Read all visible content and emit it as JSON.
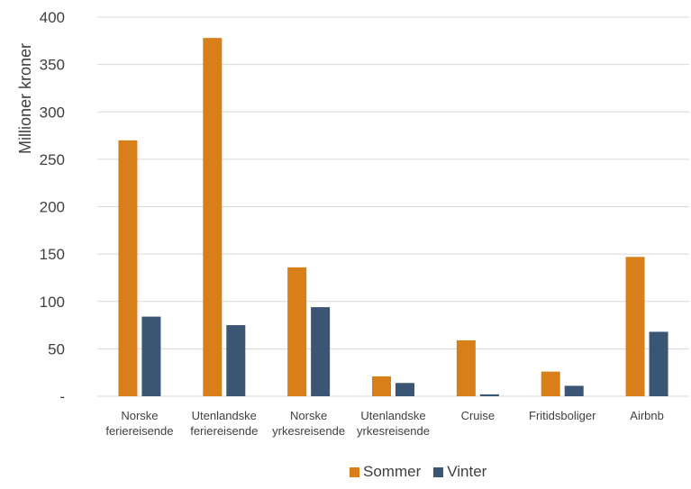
{
  "chart_data": {
    "type": "bar",
    "title": "",
    "xlabel": "",
    "ylabel": "Millioner kroner",
    "ylim": [
      0,
      400
    ],
    "yticks": [
      0,
      50,
      100,
      150,
      200,
      250,
      300,
      350,
      400
    ],
    "ytick_labels": [
      "-",
      "50",
      "100",
      "150",
      "200",
      "250",
      "300",
      "350",
      "400"
    ],
    "grid": true,
    "legend_position": "bottom",
    "categories": [
      [
        "Norske",
        "feriereisende"
      ],
      [
        "Utenlandske",
        "feriereisende"
      ],
      [
        "Norske",
        "yrkesreisende"
      ],
      [
        "Utenlandske",
        "yrkesreisende"
      ],
      [
        "Cruise"
      ],
      [
        "Fritidsboliger"
      ],
      [
        "Airbnb"
      ]
    ],
    "series": [
      {
        "name": "Sommer",
        "color": "#D97F1A",
        "values": [
          270,
          378,
          136,
          21,
          59,
          26,
          147
        ]
      },
      {
        "name": "Vinter",
        "color": "#3B5574",
        "values": [
          84,
          75,
          94,
          14,
          2,
          11,
          68
        ]
      }
    ]
  }
}
